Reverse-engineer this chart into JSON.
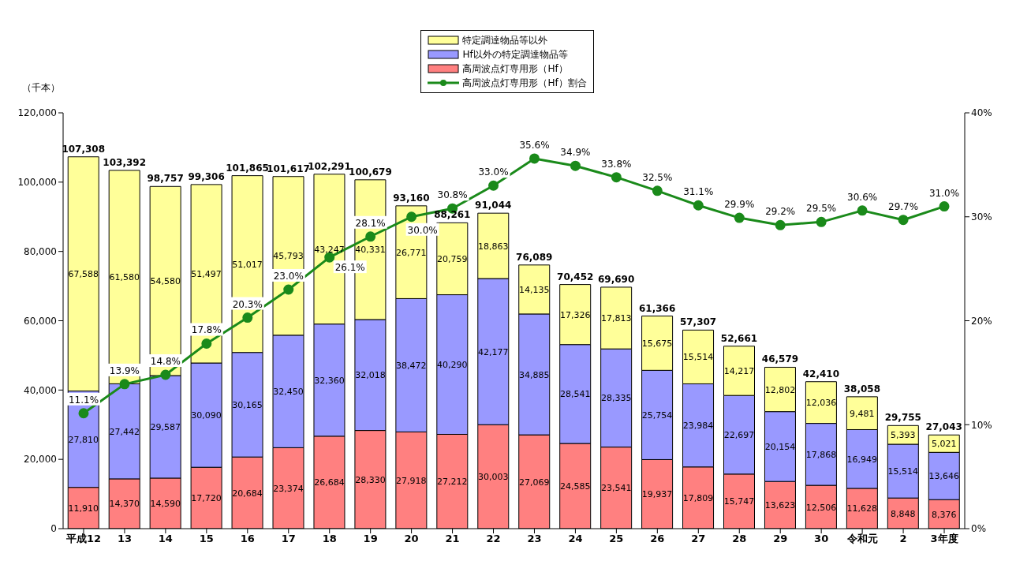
{
  "chart_data": {
    "type": "bar",
    "stacked": true,
    "ylabel": "（千本）",
    "categories": [
      "平成12",
      "13",
      "14",
      "15",
      "16",
      "17",
      "18",
      "19",
      "20",
      "21",
      "22",
      "23",
      "24",
      "25",
      "26",
      "27",
      "28",
      "29",
      "30",
      "令和元",
      "2",
      "3年度"
    ],
    "series": [
      {
        "name": "高周波点灯専用形（Hf）",
        "color": "#ff8080",
        "values": [
          11910,
          14370,
          14590,
          17720,
          20684,
          23374,
          26684,
          28330,
          27918,
          27212,
          30003,
          27069,
          24585,
          23541,
          19937,
          17809,
          15747,
          13623,
          12506,
          11628,
          8848,
          8376
        ],
        "value_labels": [
          "11,910",
          "14,370",
          "14,590",
          "17,720",
          "20,684",
          "23,374",
          "26,684",
          "28,330",
          "27,918",
          "27,212",
          "30,003",
          "27,069",
          "24,585",
          "23,541",
          "19,937",
          "17,809",
          "15,747",
          "13,623",
          "12,506",
          "11,628",
          "8,848",
          "8,376"
        ]
      },
      {
        "name": "Hf以外の特定調達物品等",
        "color": "#9999ff",
        "values": [
          27810,
          27442,
          29587,
          30090,
          30165,
          32450,
          32360,
          32018,
          38472,
          40290,
          42177,
          34885,
          28541,
          28335,
          25754,
          23984,
          22697,
          20154,
          17868,
          16949,
          15514,
          13646
        ],
        "value_labels": [
          "27,810",
          "27,442",
          "29,587",
          "30,090",
          "30,165",
          "32,450",
          "32,360",
          "32,018",
          "38,472",
          "40,290",
          "42,177",
          "34,885",
          "28,541",
          "28,335",
          "25,754",
          "23,984",
          "22,697",
          "20,154",
          "17,868",
          "16,949",
          "15,514",
          "13,646"
        ]
      },
      {
        "name": "特定調達物品等以外",
        "color": "#ffff99",
        "values": [
          67588,
          61580,
          54580,
          51497,
          51017,
          45793,
          43247,
          40331,
          26771,
          20759,
          18863,
          14135,
          17326,
          17813,
          15675,
          15514,
          14217,
          12802,
          12036,
          9481,
          5393,
          5021
        ],
        "value_labels": [
          "67,588",
          "61,580",
          "54,580",
          "51,497",
          "51,017",
          "45,793",
          "43,247",
          "40,331",
          "26,771",
          "20,759",
          "18,863",
          "14,135",
          "17,326",
          "17,813",
          "15,675",
          "15,514",
          "14,217",
          "12,802",
          "12,036",
          "9,481",
          "5,393",
          "5,021"
        ]
      },
      {
        "name": "高周波点灯専用形（Hf）割合",
        "type": "line",
        "axis": "y2",
        "color": "#1a8a1a",
        "marker": "circle",
        "values": [
          11.1,
          13.9,
          14.8,
          17.8,
          20.3,
          23.0,
          26.1,
          28.1,
          30.0,
          30.8,
          33.0,
          35.6,
          34.9,
          33.8,
          32.5,
          31.1,
          29.9,
          29.2,
          29.5,
          30.6,
          29.7,
          31.0
        ],
        "value_labels": [
          "11.1%",
          "13.9%",
          "14.8%",
          "17.8%",
          "20.3%",
          "23.0%",
          "26.1%",
          "28.1%",
          "30.0%",
          "30.8%",
          "33.0%",
          "35.6%",
          "34.9%",
          "33.8%",
          "32.5%",
          "31.1%",
          "29.9%",
          "29.2%",
          "29.5%",
          "30.6%",
          "29.7%",
          "31.0%"
        ]
      }
    ],
    "totals": [
      "107,308",
      "103,392",
      "98,757",
      "99,306",
      "101,865",
      "101,617",
      "102,291",
      "100,679",
      "93,160",
      "88,261",
      "91,044",
      "76,089",
      "70,452",
      "69,690",
      "61,366",
      "57,307",
      "52,661",
      "46,579",
      "42,410",
      "38,058",
      "29,755",
      "27,043"
    ],
    "ylim": [
      0,
      120000
    ],
    "yticks": [
      0,
      {
        "value": 20000,
        "label": "20,000"
      },
      {
        "value": 40000,
        "label": "40,000"
      },
      {
        "value": 60000,
        "label": "60,000"
      },
      {
        "value": 80000,
        "label": "80,000"
      },
      {
        "value": 100000,
        "label": "100,000"
      },
      {
        "value": 120000,
        "label": "120,000"
      }
    ],
    "y2lim": [
      0,
      40
    ],
    "y2ticks": [
      {
        "value": 0,
        "label": "0%"
      },
      {
        "value": 10,
        "label": "10%"
      },
      {
        "value": 20,
        "label": "20%"
      },
      {
        "value": 30,
        "label": "30%"
      },
      {
        "value": 40,
        "label": "40%"
      }
    ],
    "grid": false,
    "legend": "top"
  }
}
